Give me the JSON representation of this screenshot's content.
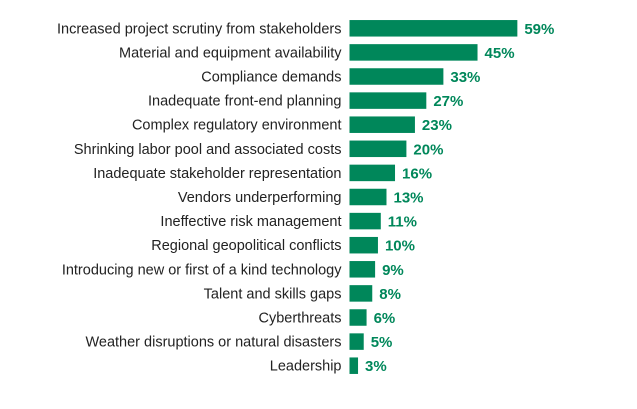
{
  "chart_data": {
    "type": "bar",
    "orientation": "horizontal",
    "title": "",
    "xlabel": "",
    "ylabel": "",
    "xlim": [
      0,
      100
    ],
    "grid": false,
    "bar_color": "#00875a",
    "categories": [
      "Increased project scrutiny from stakeholders",
      "Material and equipment availability",
      "Compliance demands",
      "Inadequate front-end planning",
      "Complex regulatory environment",
      "Shrinking labor pool and associated costs",
      "Inadequate stakeholder representation",
      "Vendors underperforming",
      "Ineffective risk management",
      "Regional geopolitical conflicts",
      "Introducing new or first of a kind technology",
      "Talent and skills gaps",
      "Cyberthreats",
      "Weather disruptions or natural disasters",
      "Leadership"
    ],
    "values": [
      59,
      45,
      33,
      27,
      23,
      20,
      16,
      13,
      11,
      10,
      9,
      8,
      6,
      5,
      3
    ],
    "value_labels": [
      "59%",
      "45%",
      "33%",
      "27%",
      "23%",
      "20%",
      "16%",
      "13%",
      "11%",
      "10%",
      "9%",
      "8%",
      "6%",
      "5%",
      "3%"
    ]
  }
}
